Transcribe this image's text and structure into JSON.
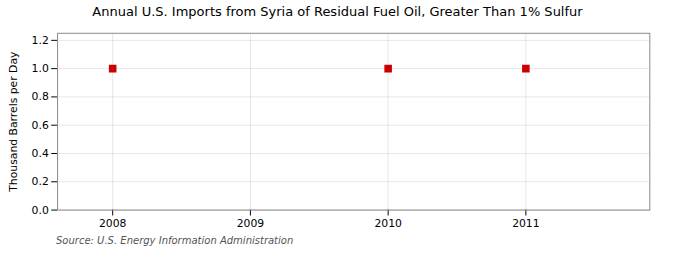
{
  "chart_data": {
    "type": "scatter",
    "title": "Annual U.S. Imports from Syria of Residual Fuel Oil, Greater Than 1% Sulfur",
    "ylabel": "Thousand Barrels per Day",
    "source": "Source: U.S. Energy Information Administration",
    "x": [
      2008,
      2010,
      2011
    ],
    "values": [
      1.0,
      1.0,
      1.0
    ],
    "color": "#cc0000",
    "marker": "square",
    "xlim": [
      2007.6,
      2011.9
    ],
    "xticks": [
      2008,
      2009,
      2010,
      2011
    ],
    "ylim": [
      0.0,
      1.25
    ],
    "yticks": [
      {
        "value": 0.0,
        "label": "0.0"
      },
      0.2,
      0.4,
      0.6,
      0.8,
      {
        "value": 1.0,
        "label": "1.0"
      },
      1.2
    ],
    "grid": true
  }
}
